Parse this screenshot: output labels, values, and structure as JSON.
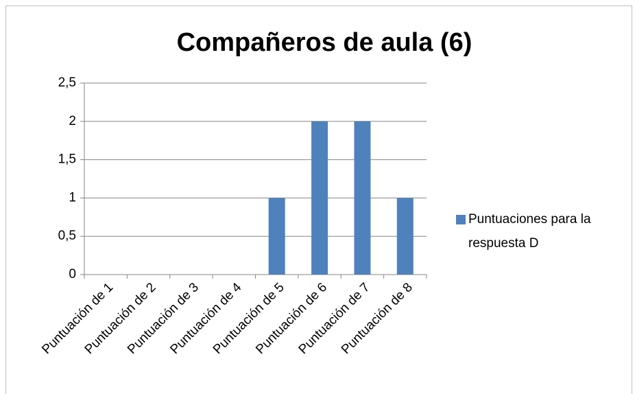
{
  "chart_data": {
    "type": "bar",
    "title": "Compañeros de aula (6)",
    "categories": [
      "Puntuación de 1",
      "Puntuación de 2",
      "Puntuación de 3",
      "Puntuación de 4",
      "Puntuación de 5",
      "Puntuación de 6",
      "Puntuación de 7",
      "Puntuación de 8"
    ],
    "series": [
      {
        "name": "Puntuaciones para la respuesta D",
        "color": "#4f81bd",
        "values": [
          0,
          0,
          0,
          0,
          1,
          2,
          2,
          1
        ]
      }
    ],
    "ylim": [
      0,
      2.5
    ],
    "yticks": [
      0,
      {
        "value": 0.5,
        "label": "0,5"
      },
      1,
      {
        "value": 1.5,
        "label": "1,5"
      },
      2,
      {
        "value": 2.5,
        "label": "2,5"
      }
    ],
    "grid": true,
    "legend": "right"
  }
}
